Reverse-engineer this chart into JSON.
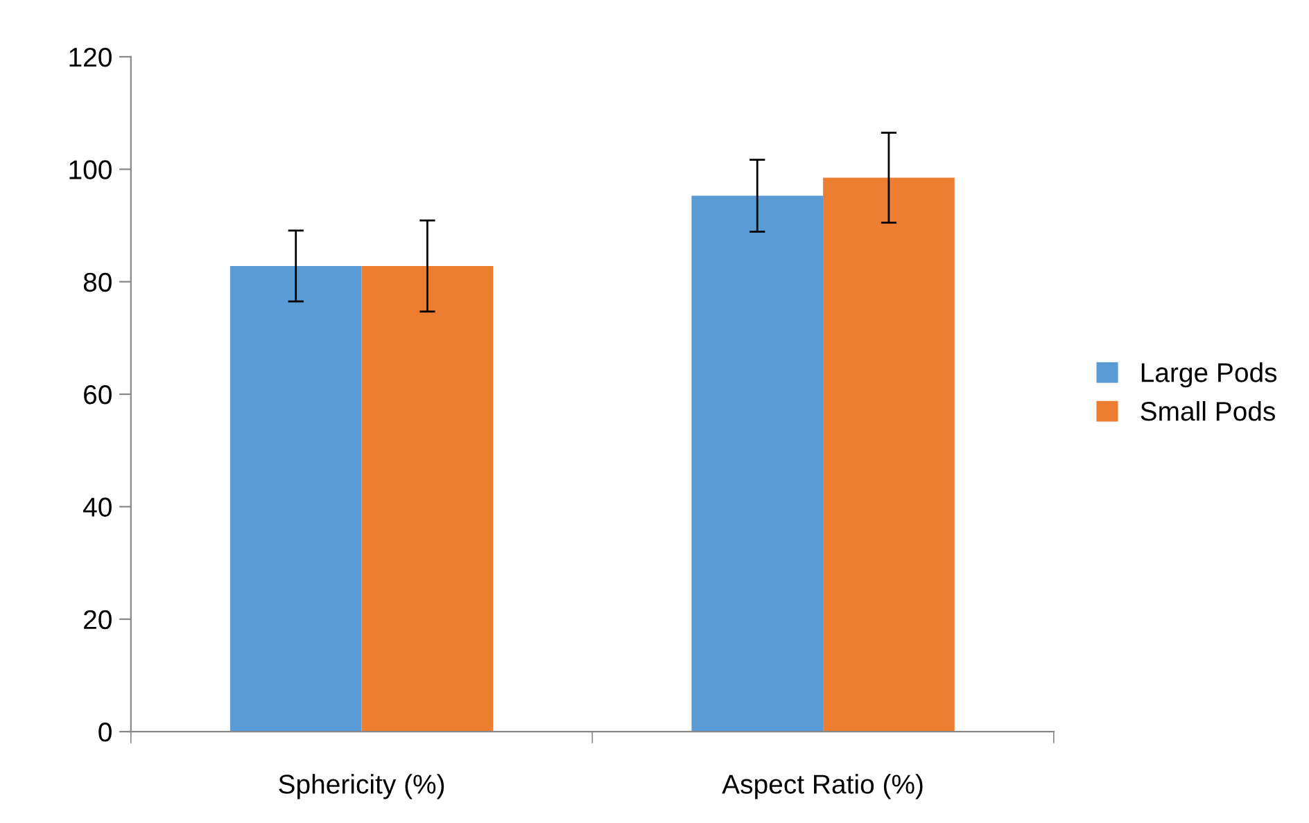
{
  "chart_data": {
    "type": "bar",
    "categories": [
      "Sphericity (%)",
      "Aspect Ratio (%)"
    ],
    "series": [
      {
        "name": "Large Pods",
        "color": "#5b9bd5",
        "values": [
          82.8,
          95.3
        ],
        "errors": [
          6.3,
          6.4
        ]
      },
      {
        "name": "Small Pods",
        "color": "#ed7d31",
        "values": [
          82.8,
          98.5
        ],
        "errors": [
          8.1,
          8.0
        ]
      }
    ],
    "ylim": [
      0,
      120
    ],
    "yticks": [
      0,
      20,
      40,
      60,
      80,
      100,
      120
    ],
    "grid": false,
    "legend": "right"
  }
}
